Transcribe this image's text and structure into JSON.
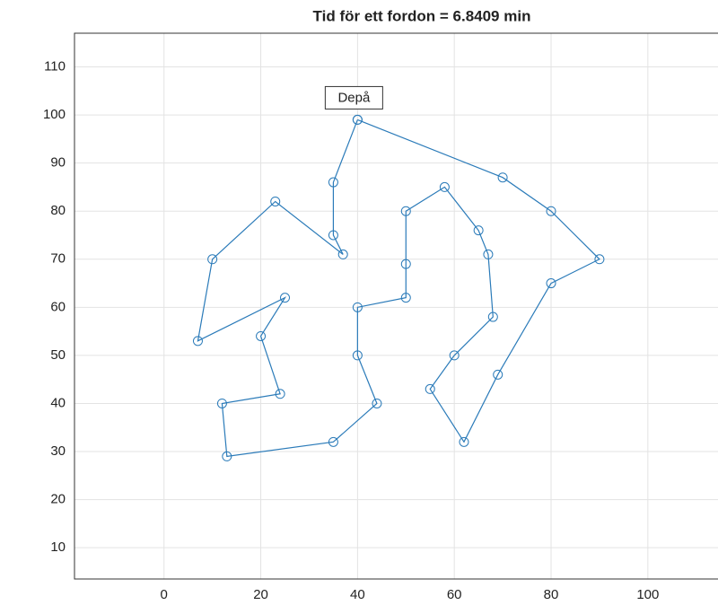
{
  "chart_data": {
    "type": "line",
    "title": "Tid för ett fordon = 6.8409 min",
    "annotation": "Depå",
    "series": [
      {
        "color": "#2b7bb9",
        "x": [
          40,
          70,
          80,
          90,
          80,
          69,
          62,
          55,
          60,
          68,
          67,
          65,
          58,
          50,
          50,
          50,
          40,
          40,
          44,
          35,
          13,
          12,
          24,
          20,
          25,
          7,
          10,
          23,
          37,
          35,
          35,
          40
        ],
        "values": [
          99,
          87,
          80,
          70,
          65,
          46,
          32,
          43,
          50,
          58,
          71,
          76,
          85,
          80,
          69,
          62,
          60,
          50,
          40,
          32,
          29,
          40,
          42,
          54,
          62,
          53,
          70,
          82,
          71,
          75,
          86,
          99
        ]
      }
    ],
    "xlim": [
      -18.5,
      114.5
    ],
    "ylim": [
      3.5,
      117
    ],
    "xticks": [
      0,
      20,
      40,
      60,
      80,
      100
    ],
    "yticks": [
      10,
      20,
      30,
      40,
      50,
      60,
      70,
      80,
      90,
      100,
      110
    ],
    "grid": true
  }
}
